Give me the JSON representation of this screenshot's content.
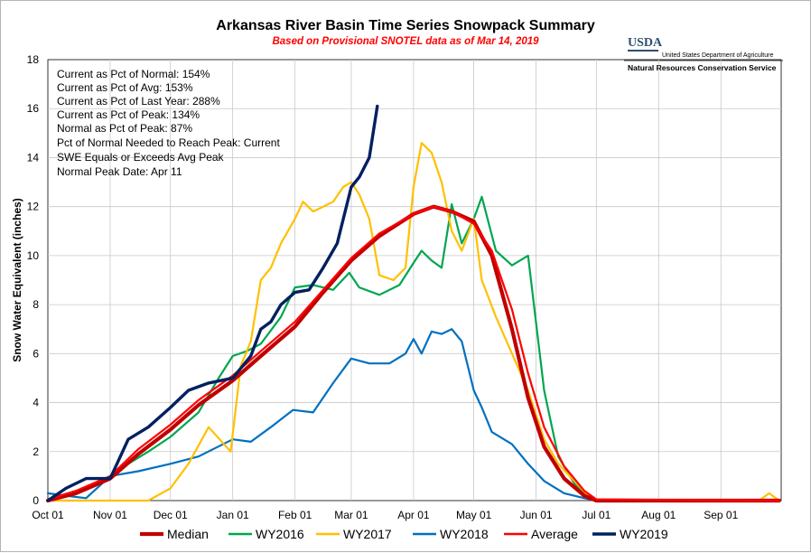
{
  "title": "Arkansas River Basin Time Series Snowpack Summary",
  "subtitle": "Based on Provisional SNOTEL data as of Mar 14, 2019",
  "agency": {
    "logo_text": "USDA",
    "department": "United States Department of Agriculture",
    "service": "Natural Resources Conservation Service"
  },
  "stats": [
    "Current  as Pct of Normal: 154%",
    "Current  as Pct of Avg: 153%",
    "Current  as Pct of Last Year: 288%",
    "Current  as Pct of Peak: 134%",
    "Normal  as Pct of Peak: 87%",
    "Pct of Normal Needed  to Reach Peak: Current",
    "SWE Equals or Exceeds Avg Peak",
    "Normal Peak Date: Apr 11"
  ],
  "chart_data": {
    "type": "line",
    "title": "Arkansas River Basin Time Series Snowpack Summary",
    "subtitle": "Based on Provisional SNOTEL data as of Mar 14, 2019",
    "xlabel": "",
    "ylabel": "Snow Water Equivalent (inches)",
    "ylim": [
      0,
      18
    ],
    "yticks": [
      "0",
      "2",
      "4",
      "6",
      "8",
      "10",
      "12",
      "14",
      "16",
      "18"
    ],
    "xticks": [
      "Oct 01",
      "Nov 01",
      "Dec 01",
      "Jan 01",
      "Feb 01",
      "Mar 01",
      "Apr 01",
      "May 01",
      "Jun 01",
      "Jul 01",
      "Aug 01",
      "Sep 01"
    ],
    "grid": true,
    "legend_position": "bottom",
    "series": [
      {
        "name": "Median",
        "color": "#c00000",
        "x": [
          "Oct 01",
          "Oct 15",
          "Nov 01",
          "Nov 15",
          "Dec 01",
          "Dec 15",
          "Jan 01",
          "Jan 15",
          "Feb 01",
          "Feb 15",
          "Mar 01",
          "Mar 15",
          "Apr 01",
          "Apr 11",
          "Apr 20",
          "May 01",
          "May 10",
          "May 20",
          "May 28",
          "Jun 05",
          "Jun 15",
          "Jun 25",
          "Jul 01",
          "Sep 30"
        ],
        "values": [
          0,
          0.3,
          0.9,
          1.9,
          2.9,
          3.9,
          4.9,
          5.9,
          7.1,
          8.5,
          9.8,
          10.8,
          11.7,
          12.0,
          11.8,
          11.4,
          10.0,
          7.0,
          4.2,
          2.2,
          0.9,
          0.2,
          0,
          0
        ]
      },
      {
        "name": "WY2016",
        "color": "#00a650",
        "x": [
          "Oct 01",
          "Oct 15",
          "Nov 01",
          "Nov 10",
          "Nov 20",
          "Dec 01",
          "Dec 15",
          "Dec 25",
          "Jan 01",
          "Jan 08",
          "Jan 15",
          "Jan 25",
          "Feb 01",
          "Feb 10",
          "Feb 20",
          "Feb 28",
          "Mar 05",
          "Mar 15",
          "Mar 25",
          "Apr 01",
          "Apr 05",
          "Apr 10",
          "Apr 15",
          "Apr 20",
          "Apr 25",
          "May 01",
          "May 05",
          "May 12",
          "May 20",
          "May 28",
          "Jun 05",
          "Jun 12",
          "Jun 20",
          "Jun 28",
          "Jul 01",
          "Sep 30"
        ],
        "values": [
          0,
          0.3,
          1.0,
          1.5,
          2.0,
          2.6,
          3.6,
          5.0,
          5.9,
          6.1,
          6.4,
          7.5,
          8.7,
          8.8,
          8.6,
          9.3,
          8.7,
          8.4,
          8.8,
          9.7,
          10.2,
          9.8,
          9.5,
          12.1,
          10.5,
          11.5,
          12.4,
          10.2,
          9.6,
          10.0,
          4.5,
          1.8,
          0.7,
          0.1,
          0,
          0
        ]
      },
      {
        "name": "WY2017",
        "color": "#ffc000",
        "x": [
          "Oct 01",
          "Oct 20",
          "Nov 01",
          "Nov 20",
          "Dec 01",
          "Dec 10",
          "Dec 20",
          "Dec 31",
          "Jan 05",
          "Jan 10",
          "Jan 15",
          "Jan 20",
          "Jan 25",
          "Feb 01",
          "Feb 05",
          "Feb 10",
          "Feb 15",
          "Feb 20",
          "Feb 25",
          "Mar 01",
          "Mar 05",
          "Mar 10",
          "Mar 15",
          "Mar 22",
          "Mar 28",
          "Apr 01",
          "Apr 05",
          "Apr 10",
          "Apr 15",
          "Apr 20",
          "Apr 25",
          "May 01",
          "May 05",
          "May 12",
          "May 20",
          "May 28",
          "Jun 05",
          "Jun 12",
          "Jun 20",
          "Jun 28",
          "Jul 01",
          "Sep 20",
          "Sep 25",
          "Sep 30"
        ],
        "values": [
          0,
          0,
          0,
          0,
          0.5,
          1.5,
          3.0,
          2.0,
          5.5,
          6.5,
          9.0,
          9.5,
          10.5,
          11.5,
          12.2,
          11.8,
          12.0,
          12.2,
          12.8,
          13.0,
          12.5,
          11.5,
          9.2,
          9.0,
          9.5,
          12.8,
          14.6,
          14.2,
          13.0,
          11.0,
          10.2,
          11.5,
          9.0,
          7.5,
          6.0,
          4.5,
          2.5,
          1.5,
          0.8,
          0.1,
          0,
          0,
          0.3,
          0
        ]
      },
      {
        "name": "WY2018",
        "color": "#0070c0",
        "x": [
          "Oct 01",
          "Oct 10",
          "Oct 20",
          "Nov 01",
          "Nov 15",
          "Dec 01",
          "Dec 15",
          "Jan 01",
          "Jan 10",
          "Jan 20",
          "Jan 31",
          "Feb 10",
          "Feb 20",
          "Mar 01",
          "Mar 10",
          "Mar 20",
          "Mar 28",
          "Apr 01",
          "Apr 05",
          "Apr 10",
          "Apr 15",
          "Apr 20",
          "Apr 25",
          "May 01",
          "May 05",
          "May 10",
          "May 20",
          "May 28",
          "Jun 05",
          "Jun 15",
          "Jun 25",
          "Jul 01",
          "Sep 30"
        ],
        "values": [
          0.3,
          0.2,
          0.1,
          1.0,
          1.2,
          1.5,
          1.8,
          2.5,
          2.4,
          3.0,
          3.7,
          3.6,
          4.8,
          5.8,
          5.6,
          5.6,
          6.0,
          6.6,
          6.0,
          6.9,
          6.8,
          7.0,
          6.5,
          4.5,
          3.8,
          2.8,
          2.3,
          1.5,
          0.8,
          0.3,
          0.1,
          0,
          0
        ]
      },
      {
        "name": "Average",
        "color": "#ff0000",
        "x": [
          "Oct 01",
          "Oct 15",
          "Nov 01",
          "Nov 15",
          "Dec 01",
          "Dec 15",
          "Jan 01",
          "Jan 15",
          "Feb 01",
          "Feb 15",
          "Mar 01",
          "Mar 15",
          "Apr 01",
          "Apr 11",
          "Apr 20",
          "May 01",
          "May 10",
          "May 20",
          "May 28",
          "Jun 05",
          "Jun 15",
          "Jun 25",
          "Jul 01",
          "Sep 30"
        ],
        "values": [
          0.05,
          0.4,
          1.0,
          2.1,
          3.1,
          4.1,
          5.1,
          6.1,
          7.3,
          8.6,
          9.9,
          10.9,
          11.7,
          12.0,
          11.8,
          11.3,
          10.2,
          7.8,
          5.2,
          3.0,
          1.4,
          0.4,
          0.05,
          0
        ]
      },
      {
        "name": "WY2019",
        "color": "#002060",
        "x": [
          "Oct 01",
          "Oct 10",
          "Oct 20",
          "Nov 01",
          "Nov 10",
          "Nov 20",
          "Dec 01",
          "Dec 10",
          "Dec 20",
          "Jan 01",
          "Jan 10",
          "Jan 15",
          "Jan 20",
          "Jan 25",
          "Feb 01",
          "Feb 08",
          "Feb 15",
          "Feb 22",
          "Mar 01",
          "Mar 05",
          "Mar 10",
          "Mar 14"
        ],
        "values": [
          0,
          0.5,
          0.9,
          0.9,
          2.5,
          3.0,
          3.8,
          4.5,
          4.8,
          5.0,
          5.9,
          7.0,
          7.3,
          8.0,
          8.5,
          8.6,
          9.5,
          10.5,
          12.8,
          13.2,
          14.0,
          16.1
        ]
      }
    ]
  }
}
